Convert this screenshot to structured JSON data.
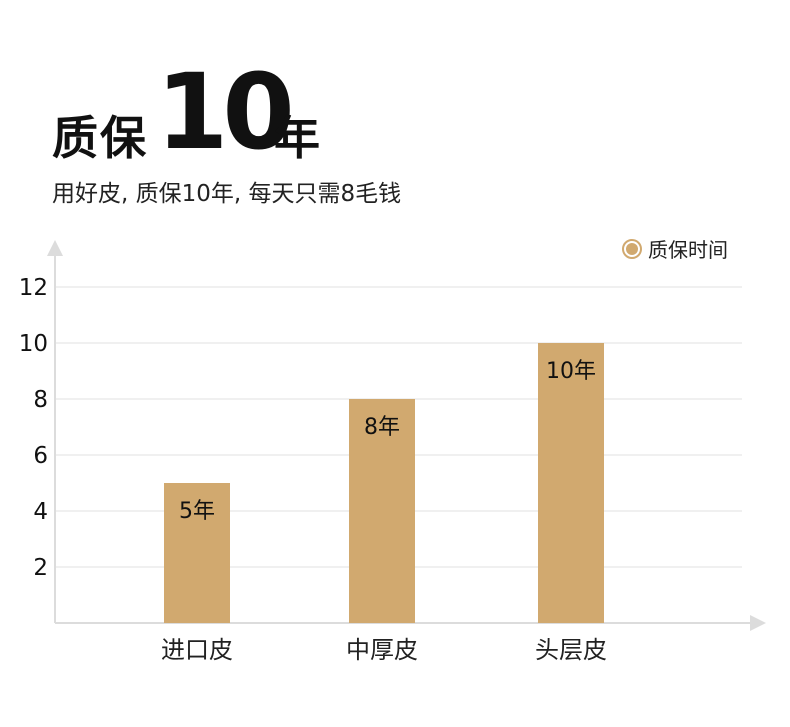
{
  "header": {
    "title_prefix": "质保",
    "title_number": "10",
    "title_suffix": "年",
    "subtitle": "用好皮, 质保10年, 每天只需8毛钱"
  },
  "chart_data": {
    "type": "bar",
    "categories": [
      "进口皮",
      "中厚皮",
      "头层皮"
    ],
    "series": [
      {
        "name": "质保时间",
        "values": [
          5,
          8,
          10
        ],
        "color": "#d1a96f"
      }
    ],
    "data_labels": [
      "5年",
      "8年",
      "10年"
    ],
    "yticks": [
      2,
      4,
      6,
      8,
      10,
      12
    ],
    "ylim": [
      0,
      13
    ],
    "grid": true,
    "legend_position": "top-right",
    "xlabel": "",
    "ylabel": ""
  }
}
